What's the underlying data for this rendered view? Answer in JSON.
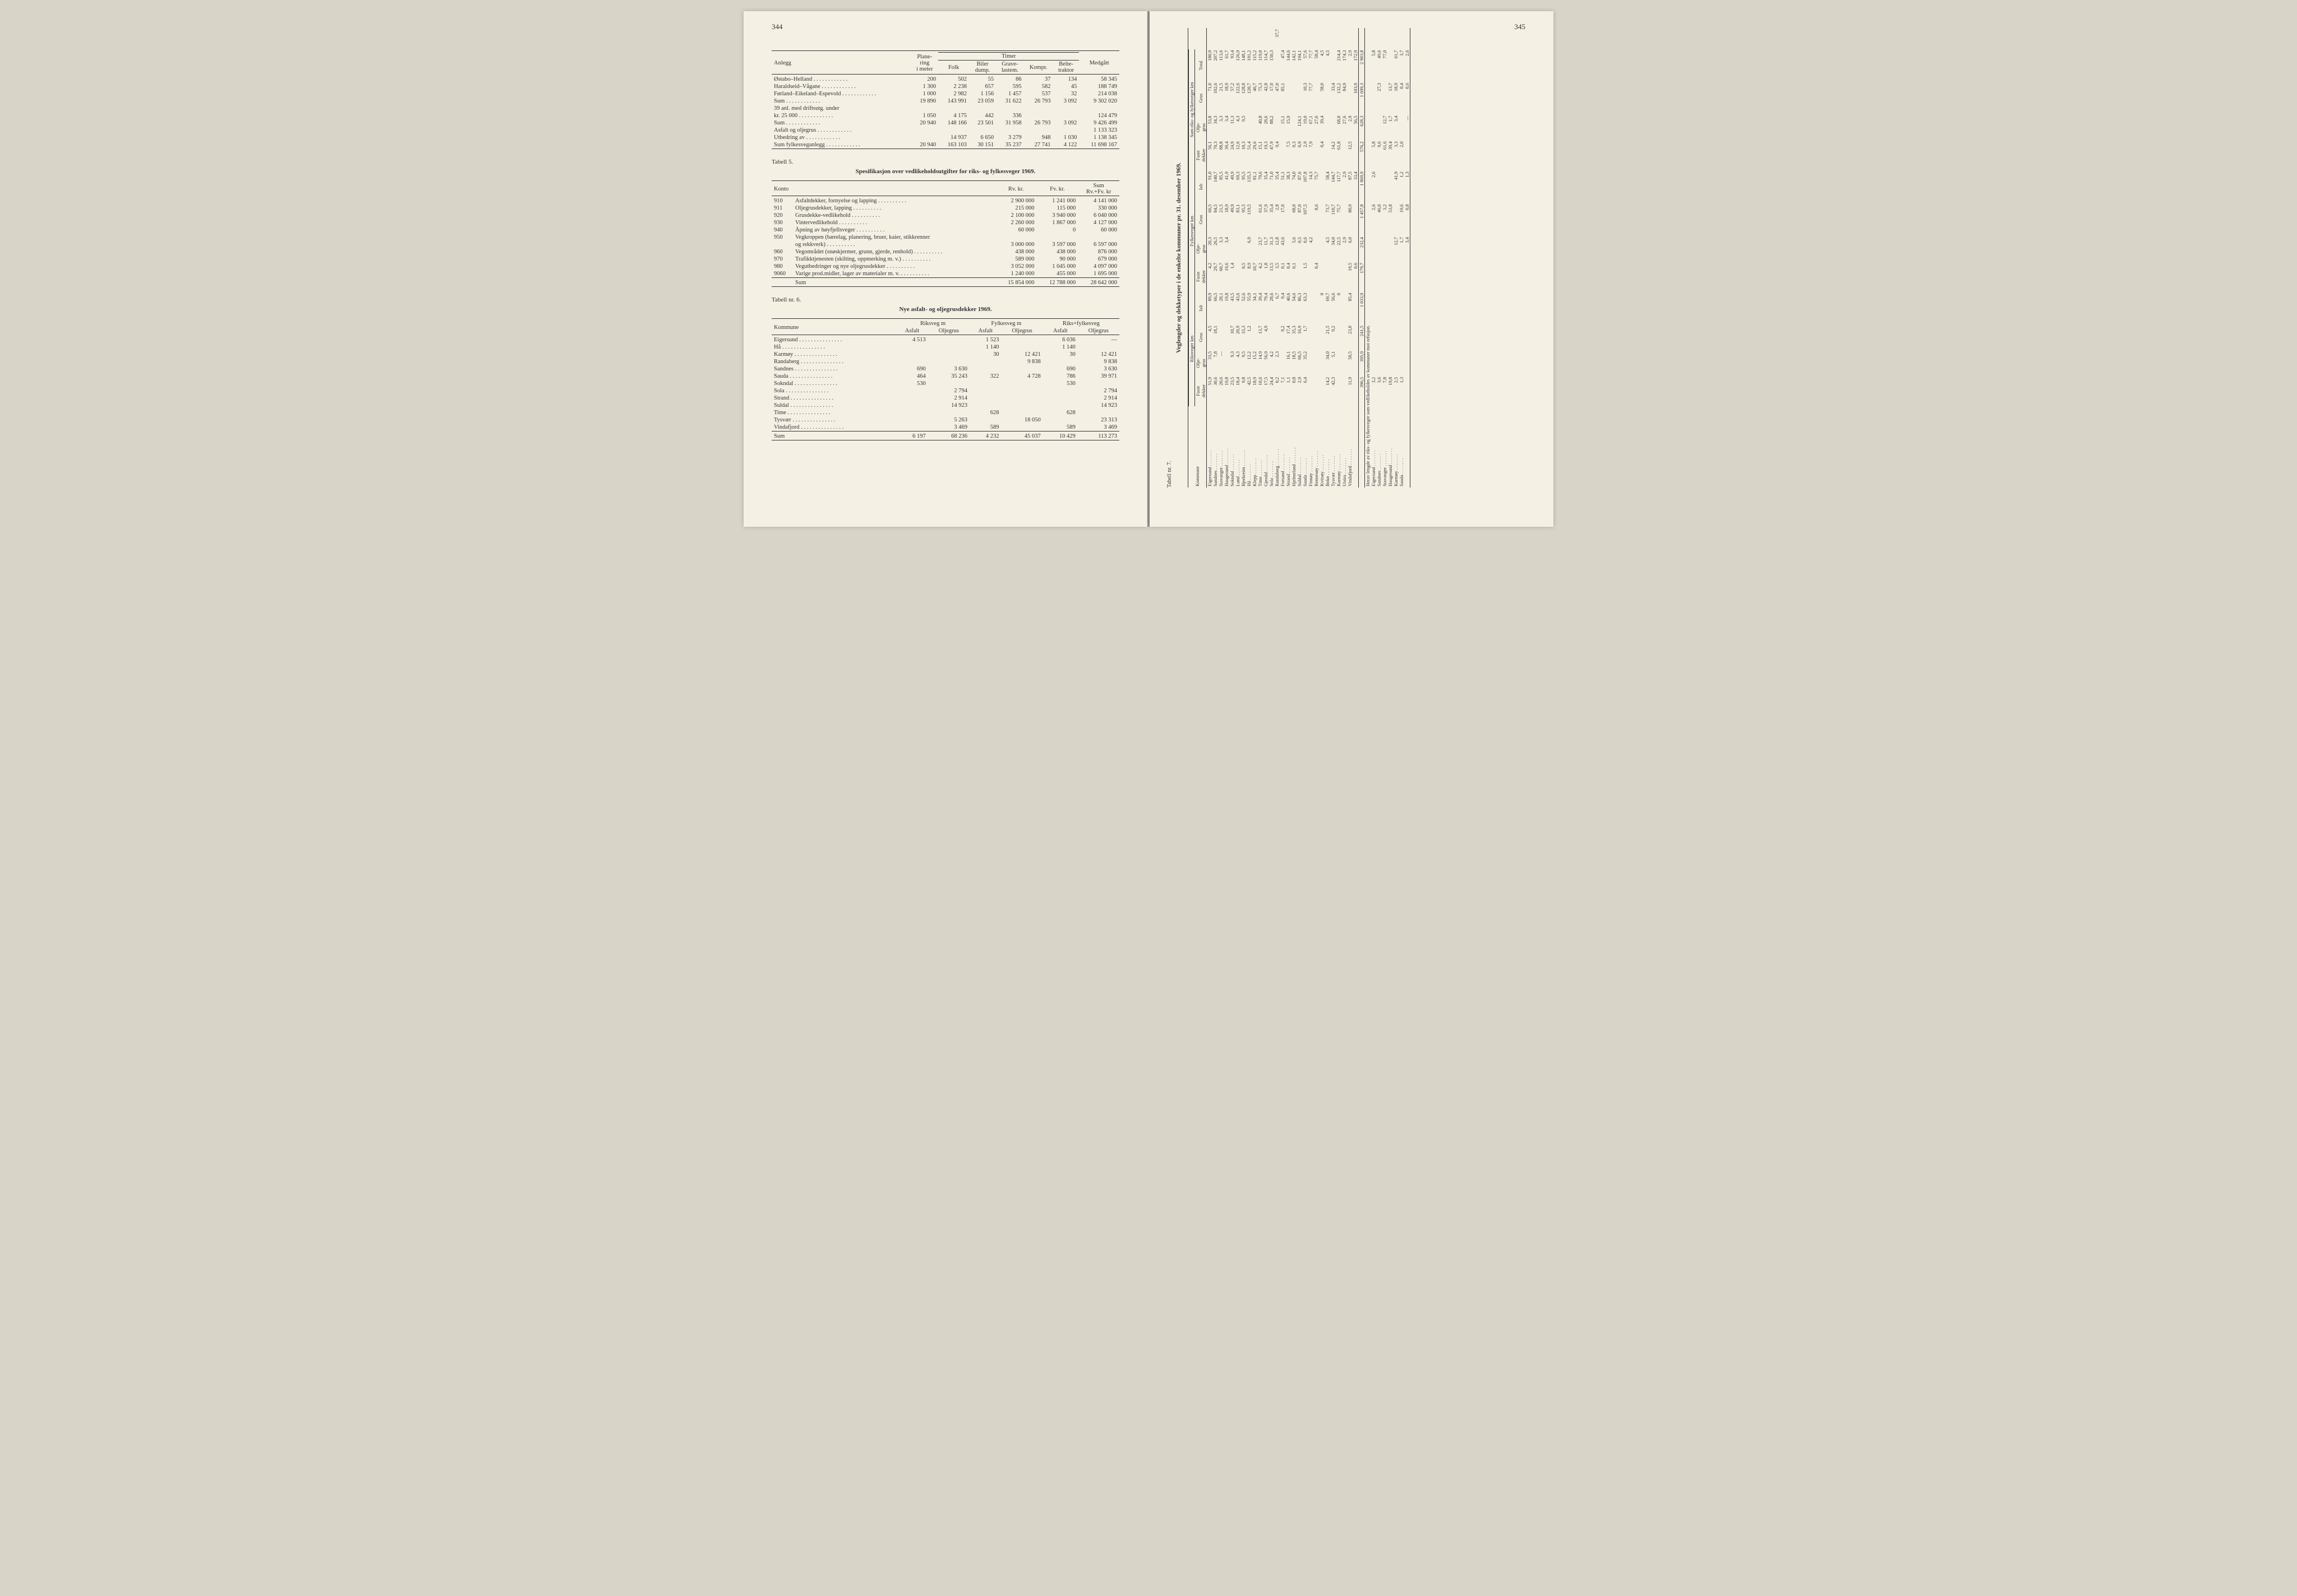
{
  "leftPage": {
    "pageNum": "344",
    "table4": {
      "headers": {
        "col1": "Anlegg",
        "col2": "Plane-\nring\ni meter",
        "groupTimer": "Timer",
        "col3": "Folk",
        "col4": "Biler\ndump.",
        "col5": "Grave-\nlastem.",
        "col6": "Kompr.",
        "col7": "Belte-\ntraktor",
        "col8": "Medgått"
      },
      "rows": [
        {
          "name": "Østabo–Helland",
          "c2": "200",
          "c3": "502",
          "c4": "55",
          "c5": "86",
          "c6": "37",
          "c7": "134",
          "c8": "58 345"
        },
        {
          "name": "Haraldseid–Vågane",
          "c2": "1 300",
          "c3": "2 238",
          "c4": "657",
          "c5": "595",
          "c6": "582",
          "c7": "45",
          "c8": "188 749"
        },
        {
          "name": "Førland–Eikeland–Espevold",
          "c2": "1 000",
          "c3": "2 982",
          "c4": "1 156",
          "c5": "1 457",
          "c6": "537",
          "c7": "32",
          "c8": "214 038"
        },
        {
          "name": "Sum",
          "c2": "19 890",
          "c3": "143 991",
          "c4": "23 059",
          "c5": "31 622",
          "c6": "26 793",
          "c7": "3 092",
          "c8": "9 302 020"
        },
        {
          "name": "39 anl. med driftsutg. under",
          "c2": "",
          "c3": "",
          "c4": "",
          "c5": "",
          "c6": "",
          "c7": "",
          "c8": ""
        },
        {
          "name": "kr. 25 000",
          "c2": "1 050",
          "c3": "4 175",
          "c4": "442",
          "c5": "336",
          "c6": "",
          "c7": "",
          "c8": "124 479"
        },
        {
          "name": "Sum",
          "c2": "20 940",
          "c3": "148 166",
          "c4": "23 501",
          "c5": "31 958",
          "c6": "26 793",
          "c7": "3 092",
          "c8": "9 426 499"
        },
        {
          "name": "Asfalt og oljegrus",
          "c2": "",
          "c3": "",
          "c4": "",
          "c5": "",
          "c6": "",
          "c7": "",
          "c8": "1 133 323"
        },
        {
          "name": "Utbedring av",
          "c2": "",
          "c3": "14 937",
          "c4": "6 650",
          "c5": "3 279",
          "c6": "948",
          "c7": "1 030",
          "c8": "1 138 345"
        },
        {
          "name": "Sum fylkesveganlegg",
          "c2": "20 940",
          "c3": "163 103",
          "c4": "30 151",
          "c5": "35 237",
          "c6": "27 741",
          "c7": "4 122",
          "c8": "11 698 167"
        }
      ]
    },
    "tabell5": {
      "label": "Tabell 5.",
      "title": "Spesifikasjon over vedlikeholdsutgifter for riks- og fylkesveger 1969.",
      "headers": {
        "c1": "Konto",
        "c2": "Rv. kr.",
        "c3": "Fv. kr.",
        "c4": "Sum\nRv.+Fv. kr"
      },
      "rows": [
        {
          "no": "910",
          "name": "Asfaltdekker, fornyelse og lapping",
          "c2": "2 900 000",
          "c3": "1 241 000",
          "c4": "4 141 000"
        },
        {
          "no": "911",
          "name": "Oljegrusdekker, lapping",
          "c2": "215 000",
          "c3": "115 000",
          "c4": "330 000"
        },
        {
          "no": "920",
          "name": "Grusdekke-vedlikehold",
          "c2": "2 100 000",
          "c3": "3 940 000",
          "c4": "6 040 000"
        },
        {
          "no": "930",
          "name": "Vintervedlikehold",
          "c2": "2 260 000",
          "c3": "1 867 000",
          "c4": "4 127 000"
        },
        {
          "no": "940",
          "name": "Åpning av høyfjellsveger",
          "c2": "60 000",
          "c3": "0",
          "c4": "60 000"
        },
        {
          "no": "950",
          "name": "Vegkroppen (bærelag, planering, bruer, kaier, stikkrenner",
          "c2": "",
          "c3": "",
          "c4": ""
        },
        {
          "no": "",
          "name": "og rekkverk)",
          "c2": "3 000 000",
          "c3": "3 597 000",
          "c4": "6 597 000"
        },
        {
          "no": "960",
          "name": "Vegområdet (snøskjermer, grunn, gjerde, renhold)",
          "c2": "438 000",
          "c3": "438 000",
          "c4": "876 000"
        },
        {
          "no": "970",
          "name": "Trafikktjenesten (skilting, oppmerking m. v.)",
          "c2": "589 000",
          "c3": "90 000",
          "c4": "679 000"
        },
        {
          "no": "980",
          "name": "Vegutbedringer og nye oljegrusdekker",
          "c2": "3 052 000",
          "c3": "1 045 000",
          "c4": "4 097 000"
        },
        {
          "no": "9060",
          "name": "Varige prod.midler, lager av materialer m. v.",
          "c2": "1 240 000",
          "c3": "455 000",
          "c4": "1 695 000"
        }
      ],
      "sum": {
        "name": "Sum",
        "c2": "15 854 000",
        "c3": "12 788 000",
        "c4": "28 642 000"
      }
    },
    "tabell6": {
      "label": "Tabell nr. 6.",
      "title": "Nye asfalt- og oljegrusdekker 1969.",
      "headers": {
        "c1": "Kommune",
        "g1": "Riksveg m",
        "g2": "Fylkesveg m",
        "g3": "Riks+fylkesveg",
        "asf": "Asfalt",
        "olj": "Oljegrus"
      },
      "rows": [
        {
          "name": "Eigersund",
          "c2": "4 513",
          "c3": "",
          "c4": "1 523",
          "c5": "",
          "c6": "6 036",
          "c7": "—"
        },
        {
          "name": "Hå",
          "c2": "",
          "c3": "",
          "c4": "1 140",
          "c5": "",
          "c6": "1 140",
          "c7": ""
        },
        {
          "name": "Karmøy",
          "c2": "",
          "c3": "",
          "c4": "30",
          "c5": "12 421",
          "c6": "30",
          "c7": "12 421"
        },
        {
          "name": "Randaberg",
          "c2": "",
          "c3": "",
          "c4": "",
          "c5": "9 838",
          "c6": "",
          "c7": "9 838"
        },
        {
          "name": "Sandnes",
          "c2": "690",
          "c3": "3 630",
          "c4": "",
          "c5": "",
          "c6": "690",
          "c7": "3 630"
        },
        {
          "name": "Sauda",
          "c2": "464",
          "c3": "35 243",
          "c4": "322",
          "c5": "4 728",
          "c6": "786",
          "c7": "39 971"
        },
        {
          "name": "Sokndal",
          "c2": "530",
          "c3": "",
          "c4": "",
          "c5": "",
          "c6": "530",
          "c7": ""
        },
        {
          "name": "Sola",
          "c2": "",
          "c3": "2 794",
          "c4": "",
          "c5": "",
          "c6": "",
          "c7": "2 794"
        },
        {
          "name": "Strand",
          "c2": "",
          "c3": "2 914",
          "c4": "",
          "c5": "",
          "c6": "",
          "c7": "2 914"
        },
        {
          "name": "Suldal",
          "c2": "",
          "c3": "14 923",
          "c4": "",
          "c5": "",
          "c6": "",
          "c7": "14 923"
        },
        {
          "name": "Time",
          "c2": "",
          "c3": "",
          "c4": "628",
          "c5": "",
          "c6": "628",
          "c7": ""
        },
        {
          "name": "Tysvær",
          "c2": "",
          "c3": "5 263",
          "c4": "",
          "c5": "18 050",
          "c6": "",
          "c7": "23 313"
        },
        {
          "name": "Vindafjord",
          "c2": "",
          "c3": "3 469",
          "c4": "589",
          "c5": "",
          "c6": "589",
          "c7": "3 469"
        }
      ],
      "sum": {
        "name": "Sum",
        "c2": "6 197",
        "c3": "68 236",
        "c4": "4 232",
        "c5": "45 037",
        "c6": "10 429",
        "c7": "113 273"
      }
    }
  },
  "rightPage": {
    "pageNum": "345",
    "tabell7": {
      "label": "Tabell nr. 7.",
      "title": "Veglengder og dekketyper i de enkelte kommuner pr. 31. desember 1969.",
      "groupHeaders": {
        "g1": "Riksveger km",
        "g2": "Fylkesveger km",
        "g3": "Sum riks- og fylkesveger km"
      },
      "subHeaders": {
        "h0": "Kommune",
        "h1": "Faste\ndekker",
        "h2": "Olje-\ngrus",
        "h3": "Grus",
        "h4": "Ialt",
        "h5": "Total"
      },
      "rows": [
        {
          "n": "Eigersund",
          "c": [
            "51,9",
            "33,5",
            "4,5",
            "89,9",
            "4,2",
            "20,3",
            "66,5",
            "91,0",
            "56,1",
            "53,8",
            "71,0",
            "180,9"
          ]
        },
        {
          "n": "Sandnes",
          "c": [
            "30,6",
            "7,8",
            "18,1",
            "66,5",
            "29,7",
            "26,5",
            "84,5",
            "140,7",
            "70,3",
            "34,3",
            "102,6",
            "207,2"
          ]
        },
        {
          "n": "Stavanger",
          "c": [
            "20,6",
            "—",
            "",
            "28,1",
            "60,7",
            "3,3",
            "21,5",
            "85,5",
            "88,8",
            "3,3",
            "21,5",
            "113,6"
          ]
        },
        {
          "n": "Haugesund",
          "c": [
            "19,8",
            "",
            "",
            "19,8",
            "19,6",
            "3,4",
            "18,9",
            "41,9",
            "39,4",
            "3,4",
            "18,9",
            "61,7"
          ]
        },
        {
          "n": "Sokndal",
          "c": [
            "23,5",
            "9,3",
            "10,7",
            "43,5",
            "1,4",
            "",
            "49,9",
            "49,9",
            "24,9",
            "11,3",
            "57,2",
            "93,4"
          ]
        },
        {
          "n": "Lund",
          "c": [
            "18,4",
            "4,3",
            "20,9",
            "43,6",
            "",
            "",
            "83,1",
            "69,3",
            "12,6",
            "4,3",
            "122,6",
            "126,9"
          ]
        },
        {
          "n": "Bjerkreim",
          "c": [
            "9,8",
            "9,5",
            "33,3",
            "52,6",
            "0,5",
            "",
            "95,5",
            "95,5",
            "10,3",
            "9,5",
            "128,8",
            "148,1"
          ]
        },
        {
          "n": "Hå",
          "c": [
            "42,5",
            "12,2",
            "1,2",
            "55,9",
            "8,9",
            "6,9",
            "119,5",
            "135,3",
            "51,4",
            "",
            "120,7",
            "191,2"
          ]
        },
        {
          "n": "Klepp",
          "c": [
            "18,9",
            "15,2",
            "",
            "34,1",
            "10,7",
            "",
            "",
            "81,1",
            "29,6",
            "",
            "46,7",
            "115,2"
          ]
        },
        {
          "n": "Time",
          "c": [
            "10,6",
            "14,9",
            "13,7",
            "39,4",
            "4,2",
            "23,7",
            "61,6",
            "79,6",
            "15,1",
            "40,8",
            "75,3",
            "119,0"
          ]
        },
        {
          "n": "Gjesdal",
          "c": [
            "17,5",
            "56,9",
            "4,9",
            "79,4",
            "1,8",
            "11,7",
            "37,9",
            "35,4",
            "19,3",
            "28,6",
            "42,8",
            "114,7"
          ]
        },
        {
          "n": "Sola",
          "c": [
            "24,4",
            "4,2",
            "",
            "28,6",
            "13,5",
            "31,3",
            "35,4",
            "71,0",
            "47,9",
            "88,2",
            "17,0",
            "150,3"
          ]
        },
        {
          "n": "Randaberg",
          "c": [
            "0,2",
            "2,3",
            "",
            "6,7",
            "3,5",
            "12,8",
            "2,8",
            "35,4",
            "9,4",
            "",
            "47,0",
            "",
            "37,7"
          ]
        },
        {
          "n": "Forsand",
          "c": [
            "7,1",
            "",
            "9,2",
            "9,4",
            "0,1",
            "43,6",
            "17,0",
            "51,1",
            "",
            "15,1",
            "85,1",
            "47,4"
          ]
        },
        {
          "n": "Strand",
          "c": [
            "1,1",
            "16,1",
            "17,4",
            "40,6",
            "0,4",
            "",
            "",
            "38,3",
            "7,5",
            "15,9",
            "",
            "144,6"
          ]
        },
        {
          "n": "Hjelmeland",
          "c": [
            "0,8",
            "18,5",
            "35,3",
            "54,6",
            "0,1",
            "5,6",
            "68,0",
            "74,0",
            "0,3",
            "",
            "",
            "142,1"
          ]
        },
        {
          "n": "Suldal",
          "c": [
            "2,9",
            "66,5",
            "16,9",
            "86,3",
            "",
            "0,5",
            "87,0",
            "87,6",
            "0,9",
            "124,1",
            "",
            "194,1"
          ]
        },
        {
          "n": "Sauda",
          "c": [
            "6,4",
            "35,2",
            "1,7",
            "63,3",
            "1,5",
            "0,6",
            "107,5",
            "107,8",
            "2,9",
            "19,0",
            "10,3",
            "57,6"
          ]
        },
        {
          "n": "Finnøy",
          "c": [
            "",
            "",
            "",
            "",
            "",
            "4,2",
            "",
            "14,3",
            "7,9",
            "67,1",
            "77,7",
            "77,7"
          ]
        },
        {
          "n": "Rennesøy",
          "c": [
            "",
            "",
            "",
            "",
            "0,4",
            "",
            "8,6",
            "75,7",
            "",
            "27,6",
            "",
            "58,4"
          ]
        },
        {
          "n": "Kvitsøy",
          "c": [
            "",
            "",
            "",
            "0",
            "",
            "",
            "",
            "",
            "0,4",
            "39,4",
            "58,0",
            "4,5"
          ]
        },
        {
          "n": "Bokn",
          "c": [
            "14,2",
            "34,0",
            "21,5",
            "69,7",
            "",
            "4,5",
            "73,7",
            "58,4",
            "",
            "",
            "",
            "4,5"
          ]
        },
        {
          "n": "Tysvær",
          "c": [
            "42,3",
            "5,1",
            "9,2",
            "56,6",
            "",
            "34,0",
            "110,7",
            "144,7",
            "14,2",
            "",
            "33,4"
          ]
        },
        {
          "n": "Karmøy",
          "c": [
            "",
            "",
            "",
            "0",
            "",
            "22,5",
            "75,7",
            "117,7",
            "61,8",
            "68,0",
            "132,2",
            "214,4"
          ]
        },
        {
          "n": "Utsira",
          "c": [
            "",
            "",
            "",
            "",
            "",
            "2,9",
            "",
            "2,9",
            "",
            "27,6",
            "84,9",
            "174,3"
          ]
        },
        {
          "n": "Vindafjord",
          "c": [
            "11,9",
            "50,5",
            "23,0",
            "85,4",
            "19,5",
            "6,0",
            "80,9",
            "87,5",
            "12,5",
            "2,9",
            "",
            "2,9"
          ]
        },
        {
          "n": "",
          "c": [
            "",
            "",
            "",
            "",
            "0,6",
            "",
            "",
            "33,4",
            "",
            "56,5",
            "103,9",
            "172,9"
          ]
        }
      ],
      "totals": [
        "396,5",
        "395,9",
        "241,5",
        "1 033,9",
        "179,7",
        "232,4",
        "1 457,8",
        "1 869,9",
        "576,2",
        "628,3",
        "1 699,3",
        "2 903,8"
      ],
      "footerLabel": "Herav lengde av riks- og fylkesveger som vedlikeholdes av kommuner mot refusjon.",
      "footerRows": [
        {
          "n": "Eigersund",
          "c": [
            "3,2",
            "",
            "",
            "",
            "",
            "",
            "2,6",
            "2,6",
            "5,8",
            "",
            "",
            "5,8"
          ]
        },
        {
          "n": "Sandnes",
          "c": [
            "3,6",
            "",
            "",
            "",
            "",
            "",
            "46,0",
            "",
            "9,6",
            "",
            "27,3",
            "49,6"
          ]
        },
        {
          "n": "Stavanger",
          "c": [
            "7,8",
            "",
            "",
            "",
            "",
            "",
            "3,2",
            "",
            "61,6",
            "12,7",
            "",
            "77,0"
          ]
        },
        {
          "n": "Haugesund",
          "c": [
            "19,8",
            "",
            "",
            "",
            "",
            "",
            "53,8",
            "",
            "39,4",
            "1,7",
            "13,7"
          ]
        },
        {
          "n": "Karmøy",
          "c": [
            "2,5",
            "",
            "",
            "",
            "",
            "12,7",
            "",
            "41,9",
            "3,3",
            "3,4",
            "18,9",
            "61,7"
          ]
        },
        {
          "n": "Sauda",
          "c": [
            "1,3",
            "",
            "",
            "",
            "",
            "1,7",
            "19,6",
            "1,2",
            "2,0",
            "",
            "0,4",
            "3,7"
          ]
        },
        {
          "n": "",
          "c": [
            "",
            "",
            "",
            "",
            "",
            "3,4",
            "0,8",
            "1,3",
            "",
            "—",
            "0,6",
            "2,6"
          ]
        }
      ]
    }
  }
}
